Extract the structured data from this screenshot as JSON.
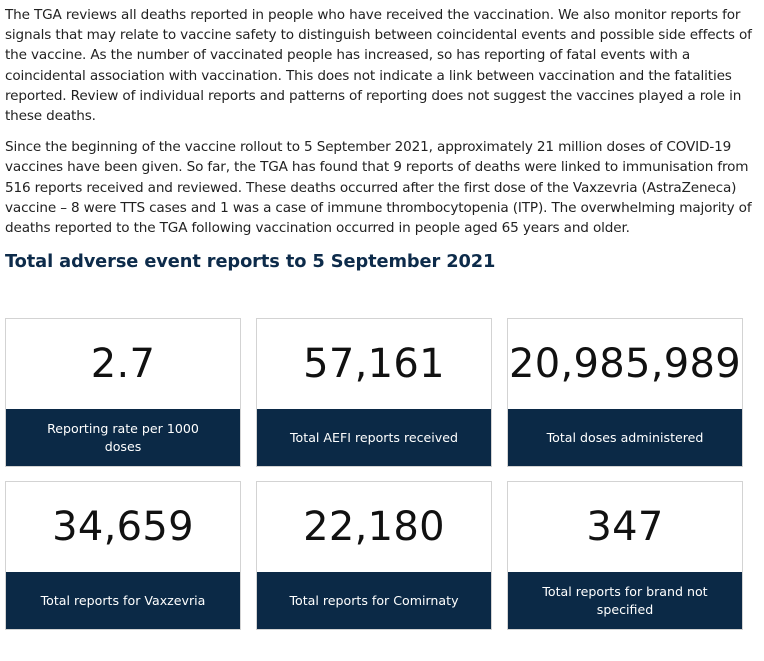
{
  "paragraphs": [
    "The TGA reviews all deaths reported in people who have received the vaccination. We also monitor reports for signals that may relate to vaccine safety to distinguish between coincidental events and possible side effects of the vaccine. As the number of vaccinated people has increased, so has reporting of fatal events with a coincidental association with vaccination. This does not indicate a link between vaccination and the fatalities reported. Review of individual reports and patterns of reporting does not suggest the vaccines played a role in these deaths.",
    "Since the beginning of the vaccine rollout to 5 September 2021, approximately 21 million doses of COVID-19 vaccines have been given. So far, the TGA has found that 9 reports of deaths were linked to immunisation from 516 reports received and reviewed. These deaths occurred after the first dose of the Vaxzevria (AstraZeneca) vaccine – 8 were TTS cases and 1 was a case of immune thrombocytopenia (ITP). The overwhelming majority of deaths reported to the TGA following vaccination occurred in people aged 65 years and older."
  ],
  "section_title": "Total adverse event reports to 5 September 2021",
  "cards": [
    {
      "value": "2.7",
      "label": "Reporting rate per 1000 doses"
    },
    {
      "value": "57,161",
      "label": "Total AEFI reports received"
    },
    {
      "value": "20,985,989",
      "label": "Total doses administered"
    },
    {
      "value": "34,659",
      "label": "Total reports for Vaxzevria"
    },
    {
      "value": "22,180",
      "label": "Total reports for Comirnaty"
    },
    {
      "value": "347",
      "label": "Total reports for brand not specified"
    }
  ],
  "colors": {
    "card_label_bg": "#0b2946",
    "title_color": "#0d2b4a"
  }
}
